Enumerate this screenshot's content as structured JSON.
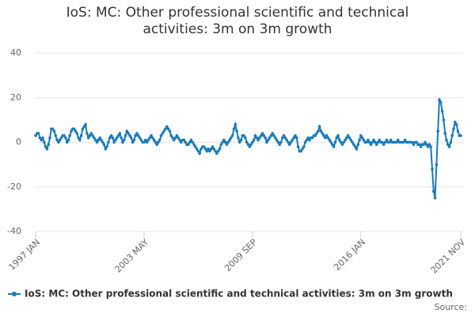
{
  "chart_data": {
    "type": "line",
    "title": "IoS: MC: Other professional scientific and technical activities: 3m on 3m growth",
    "source": "Source:",
    "categories": [
      "1997 JAN",
      null,
      null,
      null,
      null,
      null,
      null,
      null,
      null,
      null,
      null,
      null,
      null,
      null,
      null,
      null,
      null,
      null,
      null,
      null,
      null,
      null,
      null,
      null,
      null,
      null,
      null,
      null,
      null,
      null,
      null,
      null,
      null,
      null,
      null,
      null,
      null,
      null,
      null,
      null,
      null,
      null,
      null,
      null,
      null,
      null,
      null,
      null,
      null,
      null,
      null,
      null,
      null,
      null,
      null,
      null,
      null,
      null,
      null,
      null,
      null,
      null,
      null,
      null,
      null,
      null,
      null,
      null,
      null,
      null,
      null,
      null,
      null,
      null,
      null,
      null,
      "2003 MAY",
      null,
      null,
      null,
      null,
      null,
      null,
      null,
      null,
      null,
      null,
      null,
      null,
      null,
      null,
      null,
      null,
      null,
      null,
      null,
      null,
      null,
      null,
      null,
      null,
      null,
      null,
      null,
      null,
      null,
      null,
      null,
      null,
      null,
      null,
      null,
      null,
      null,
      null,
      null,
      null,
      null,
      null,
      null,
      null,
      null,
      null,
      null,
      null,
      null,
      null,
      null,
      null,
      null,
      null,
      null,
      null,
      null,
      null,
      null,
      null,
      null,
      null,
      null,
      null,
      null,
      null,
      null,
      null,
      null,
      null,
      null,
      null,
      null,
      null,
      null,
      "2009 SEP",
      null,
      null,
      null,
      null,
      null,
      null,
      null,
      null,
      null,
      null,
      null,
      null,
      null,
      null,
      null,
      null,
      null,
      null,
      null,
      null,
      null,
      null,
      null,
      null,
      null,
      null,
      null,
      null,
      null,
      null,
      null,
      null,
      null,
      null,
      null,
      null,
      null,
      null,
      null,
      null,
      null,
      null,
      null,
      null,
      null,
      null,
      null,
      null,
      null,
      null,
      null,
      null,
      null,
      null,
      null,
      null,
      null,
      null,
      null,
      null,
      null,
      null,
      null,
      null,
      null,
      null,
      null,
      null,
      null,
      null,
      null,
      null,
      null,
      null,
      null,
      "2016 JAN",
      null,
      null,
      null,
      null,
      null,
      null,
      null,
      null,
      null,
      null,
      null,
      null,
      null,
      null,
      null,
      null,
      null,
      null,
      null,
      null,
      null,
      null,
      null,
      null,
      null,
      null,
      null,
      null,
      null,
      null,
      null,
      null,
      null,
      null,
      null,
      null,
      null,
      null,
      null,
      null,
      null,
      null,
      null,
      null,
      null,
      null,
      null,
      null,
      null,
      null,
      null,
      null,
      null,
      null,
      null,
      null,
      null,
      null,
      null,
      null,
      null,
      null,
      null,
      null,
      null,
      null,
      null,
      null,
      null,
      "2021 NOV"
    ],
    "series": [
      {
        "name": "IoS: MC: Other professional scientific and technical activities: 3m on 3m growth",
        "color": "#1a7ab8",
        "values": [
          3,
          4,
          4,
          2,
          1,
          2,
          0,
          -2,
          -3,
          -1,
          2,
          6,
          6,
          5,
          3,
          1,
          0,
          1,
          2,
          3,
          3,
          2,
          0,
          1,
          3,
          5,
          6,
          6,
          5,
          4,
          2,
          1,
          3,
          6,
          7,
          8,
          4,
          2,
          3,
          4,
          3,
          2,
          1,
          0,
          1,
          2,
          1,
          0,
          -1,
          -3,
          -2,
          0,
          2,
          3,
          2,
          0,
          1,
          2,
          3,
          4,
          2,
          0,
          1,
          3,
          5,
          4,
          3,
          2,
          0,
          1,
          3,
          4,
          3,
          2,
          1,
          0,
          0,
          1,
          0,
          1,
          2,
          3,
          2,
          1,
          0,
          -1,
          0,
          1,
          3,
          4,
          5,
          6,
          7,
          6,
          5,
          3,
          2,
          1,
          2,
          3,
          2,
          1,
          0,
          1,
          1,
          0,
          -1,
          -1,
          0,
          1,
          0,
          -1,
          -2,
          -3,
          -4,
          -5,
          -3,
          -2,
          -2,
          -3,
          -4,
          -3,
          -4,
          -3,
          -2,
          -3,
          -4,
          -5,
          -4,
          -3,
          -1,
          0,
          1,
          0,
          -1,
          0,
          1,
          2,
          3,
          6,
          8,
          5,
          2,
          0,
          1,
          3,
          3,
          2,
          0,
          -1,
          -2,
          -1,
          0,
          1,
          3,
          2,
          1,
          2,
          3,
          4,
          3,
          2,
          0,
          1,
          2,
          3,
          4,
          3,
          2,
          1,
          0,
          -1,
          0,
          2,
          3,
          2,
          1,
          0,
          -1,
          0,
          1,
          2,
          3,
          2,
          -2,
          -4,
          -4,
          -3,
          -2,
          0,
          1,
          2,
          1,
          2,
          2,
          3,
          3,
          4,
          5,
          7,
          5,
          4,
          3,
          2,
          3,
          2,
          1,
          0,
          -1,
          -2,
          0,
          2,
          3,
          1,
          0,
          -1,
          0,
          1,
          2,
          3,
          2,
          1,
          0,
          -1,
          -2,
          -3,
          -1,
          1,
          3,
          2,
          1,
          0,
          0,
          1,
          0,
          -1,
          0,
          1,
          0,
          -1,
          0,
          1,
          0,
          0,
          -1,
          0,
          1,
          0,
          0,
          1,
          0,
          0,
          0,
          0,
          1,
          0,
          0,
          0,
          0,
          1,
          0,
          0,
          0,
          0,
          0,
          -1,
          0,
          0,
          -1,
          -1,
          -2,
          -1,
          -1,
          0,
          -1,
          -2,
          -1,
          -2,
          -12,
          -22,
          -25,
          -10,
          5,
          19,
          18,
          14,
          10,
          4,
          1,
          -1,
          -2,
          0,
          3,
          6,
          9,
          8,
          5,
          3,
          3
        ]
      }
    ],
    "ylim": [
      -40,
      40
    ],
    "yticks": [
      -40,
      -20,
      0,
      20,
      40
    ],
    "grid": true
  }
}
